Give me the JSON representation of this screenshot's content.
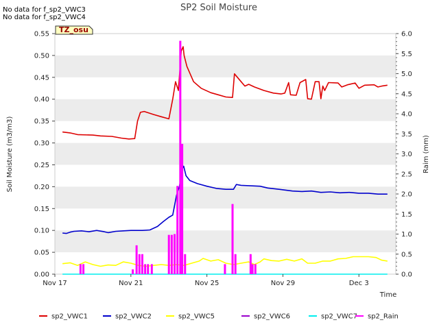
{
  "notes": [
    "No data for f_sp2_VWC3",
    "No data for f_sp2_VWC4"
  ],
  "badge": "TZ_osu",
  "chart_data": {
    "type": "line",
    "title": "SP2 Soil Moisture",
    "xlabel": "Time",
    "ylabel": "Soil Moisture (m3/m3)",
    "y2label": "Raim (mm)",
    "xlim": [
      0,
      17.5
    ],
    "ylim": [
      0,
      0.55
    ],
    "y2lim": [
      0,
      6.0
    ],
    "x_ticks": [
      0,
      4,
      8,
      12,
      16
    ],
    "x_tick_labels": [
      "Nov 17",
      "Nov 21",
      "Nov 25",
      "Nov 29",
      "Dec 3"
    ],
    "y_ticks": [
      0.0,
      0.05,
      0.1,
      0.15,
      0.2,
      0.25,
      0.3,
      0.35,
      0.4,
      0.45,
      0.5,
      0.55
    ],
    "y_tick_labels": [
      "0.00",
      "0.05",
      "0.10",
      "0.15",
      "0.20",
      "0.25",
      "0.30",
      "0.35",
      "0.40",
      "0.45",
      "0.50",
      "0.55"
    ],
    "y2_ticks": [
      0,
      0.5,
      1.0,
      1.5,
      2.0,
      2.5,
      3.0,
      3.5,
      4.0,
      4.5,
      5.0,
      5.5,
      6.0
    ],
    "y2_tick_labels": [
      "0.0",
      "0.5",
      "1.0",
      "1.5",
      "2.0",
      "2.5",
      "3.0",
      "3.5",
      "4.0",
      "4.5",
      "5.0",
      "5.5",
      "6.0"
    ],
    "grid": "horizontal bands",
    "legend_position": "bottom",
    "series": [
      {
        "name": "sp2_VWC1",
        "color": "#dd0000",
        "axis": "left",
        "points": [
          [
            0.4,
            0.325
          ],
          [
            0.8,
            0.323
          ],
          [
            1.2,
            0.319
          ],
          [
            2.0,
            0.318
          ],
          [
            2.4,
            0.316
          ],
          [
            3.0,
            0.315
          ],
          [
            3.5,
            0.311
          ],
          [
            3.9,
            0.309
          ],
          [
            4.2,
            0.31
          ],
          [
            4.35,
            0.35
          ],
          [
            4.5,
            0.37
          ],
          [
            4.7,
            0.372
          ],
          [
            5.2,
            0.365
          ],
          [
            5.6,
            0.36
          ],
          [
            6.0,
            0.355
          ],
          [
            6.2,
            0.4
          ],
          [
            6.35,
            0.44
          ],
          [
            6.5,
            0.42
          ],
          [
            6.65,
            0.51
          ],
          [
            6.75,
            0.52
          ],
          [
            6.8,
            0.5
          ],
          [
            6.95,
            0.475
          ],
          [
            7.3,
            0.44
          ],
          [
            7.7,
            0.425
          ],
          [
            8.2,
            0.415
          ],
          [
            8.6,
            0.41
          ],
          [
            9.0,
            0.405
          ],
          [
            9.35,
            0.404
          ],
          [
            9.45,
            0.458
          ],
          [
            9.8,
            0.44
          ],
          [
            10.0,
            0.43
          ],
          [
            10.2,
            0.434
          ],
          [
            10.5,
            0.428
          ],
          [
            11.0,
            0.42
          ],
          [
            11.5,
            0.414
          ],
          [
            11.9,
            0.412
          ],
          [
            12.1,
            0.414
          ],
          [
            12.3,
            0.438
          ],
          [
            12.4,
            0.41
          ],
          [
            12.7,
            0.409
          ],
          [
            12.9,
            0.438
          ],
          [
            13.2,
            0.445
          ],
          [
            13.3,
            0.401
          ],
          [
            13.5,
            0.4
          ],
          [
            13.7,
            0.44
          ],
          [
            13.9,
            0.44
          ],
          [
            14.0,
            0.401
          ],
          [
            14.1,
            0.43
          ],
          [
            14.2,
            0.42
          ],
          [
            14.4,
            0.438
          ],
          [
            14.9,
            0.437
          ],
          [
            15.1,
            0.428
          ],
          [
            15.4,
            0.433
          ],
          [
            15.8,
            0.437
          ],
          [
            16.0,
            0.425
          ],
          [
            16.3,
            0.432
          ],
          [
            16.8,
            0.433
          ],
          [
            17.0,
            0.428
          ],
          [
            17.2,
            0.43
          ],
          [
            17.5,
            0.432
          ]
        ]
      },
      {
        "name": "sp2_VWC2",
        "color": "#0000cc",
        "axis": "left",
        "points": [
          [
            0.4,
            0.094
          ],
          [
            0.6,
            0.093
          ],
          [
            0.8,
            0.096
          ],
          [
            1.0,
            0.098
          ],
          [
            1.4,
            0.099
          ],
          [
            1.8,
            0.097
          ],
          [
            2.2,
            0.1
          ],
          [
            2.6,
            0.097
          ],
          [
            2.8,
            0.095
          ],
          [
            3.2,
            0.098
          ],
          [
            3.6,
            0.099
          ],
          [
            4.0,
            0.1
          ],
          [
            4.6,
            0.1
          ],
          [
            5.0,
            0.101
          ],
          [
            5.4,
            0.109
          ],
          [
            5.7,
            0.12
          ],
          [
            6.0,
            0.13
          ],
          [
            6.2,
            0.135
          ],
          [
            6.4,
            0.18
          ],
          [
            6.55,
            0.2
          ],
          [
            6.7,
            0.24
          ],
          [
            6.78,
            0.247
          ],
          [
            6.9,
            0.225
          ],
          [
            7.1,
            0.214
          ],
          [
            7.5,
            0.207
          ],
          [
            8.0,
            0.201
          ],
          [
            8.5,
            0.196
          ],
          [
            9.0,
            0.194
          ],
          [
            9.4,
            0.194
          ],
          [
            9.55,
            0.205
          ],
          [
            9.8,
            0.203
          ],
          [
            10.3,
            0.202
          ],
          [
            10.8,
            0.201
          ],
          [
            11.2,
            0.197
          ],
          [
            11.8,
            0.194
          ],
          [
            12.5,
            0.19
          ],
          [
            13.0,
            0.189
          ],
          [
            13.5,
            0.19
          ],
          [
            14.0,
            0.187
          ],
          [
            14.5,
            0.188
          ],
          [
            15.0,
            0.186
          ],
          [
            15.5,
            0.187
          ],
          [
            16.0,
            0.185
          ],
          [
            16.5,
            0.185
          ],
          [
            17.0,
            0.183
          ],
          [
            17.5,
            0.183
          ]
        ]
      },
      {
        "name": "sp2_VWC5",
        "color": "#ffff00",
        "axis": "left",
        "points": [
          [
            0.4,
            0.024
          ],
          [
            0.8,
            0.026
          ],
          [
            1.2,
            0.02
          ],
          [
            1.6,
            0.028
          ],
          [
            2.0,
            0.022
          ],
          [
            2.4,
            0.018
          ],
          [
            2.8,
            0.021
          ],
          [
            3.2,
            0.02
          ],
          [
            3.6,
            0.028
          ],
          [
            4.0,
            0.025
          ],
          [
            4.4,
            0.02
          ],
          [
            4.8,
            0.018
          ],
          [
            5.2,
            0.02
          ],
          [
            5.6,
            0.022
          ],
          [
            6.0,
            0.02
          ],
          [
            6.4,
            0.022
          ],
          [
            6.8,
            0.02
          ],
          [
            7.2,
            0.025
          ],
          [
            7.6,
            0.03
          ],
          [
            7.8,
            0.036
          ],
          [
            8.2,
            0.03
          ],
          [
            8.6,
            0.033
          ],
          [
            9.0,
            0.025
          ],
          [
            9.4,
            0.022
          ],
          [
            9.8,
            0.025
          ],
          [
            10.2,
            0.028
          ],
          [
            10.5,
            0.022
          ],
          [
            10.8,
            0.028
          ],
          [
            11.0,
            0.035
          ],
          [
            11.4,
            0.031
          ],
          [
            11.8,
            0.03
          ],
          [
            12.2,
            0.034
          ],
          [
            12.6,
            0.03
          ],
          [
            13.0,
            0.035
          ],
          [
            13.3,
            0.025
          ],
          [
            13.7,
            0.025
          ],
          [
            14.1,
            0.03
          ],
          [
            14.5,
            0.03
          ],
          [
            14.9,
            0.035
          ],
          [
            15.3,
            0.036
          ],
          [
            15.7,
            0.04
          ],
          [
            16.1,
            0.04
          ],
          [
            16.5,
            0.04
          ],
          [
            16.9,
            0.038
          ],
          [
            17.2,
            0.032
          ],
          [
            17.5,
            0.03
          ]
        ]
      },
      {
        "name": "sp2_VWC6",
        "color": "#9900cc",
        "axis": "left",
        "points": []
      },
      {
        "name": "sp2_VWC7",
        "color": "#00eeee",
        "axis": "left",
        "points": [
          [
            0.4,
            0.0
          ],
          [
            17.5,
            0.0
          ]
        ]
      },
      {
        "name": "sp2_Rain",
        "color": "#ff00ff",
        "axis": "right",
        "bars": [
          [
            1.35,
            0.25
          ],
          [
            1.5,
            0.25
          ],
          [
            4.1,
            0.12
          ],
          [
            4.3,
            0.72
          ],
          [
            4.45,
            0.5
          ],
          [
            4.6,
            0.5
          ],
          [
            4.75,
            0.25
          ],
          [
            4.9,
            0.25
          ],
          [
            5.1,
            0.25
          ],
          [
            6.0,
            0.98
          ],
          [
            6.15,
            0.98
          ],
          [
            6.3,
            1.0
          ],
          [
            6.45,
            2.2
          ],
          [
            6.6,
            5.82
          ],
          [
            6.7,
            3.25
          ],
          [
            6.85,
            0.5
          ],
          [
            8.95,
            0.25
          ],
          [
            9.35,
            1.75
          ],
          [
            9.5,
            0.5
          ],
          [
            10.3,
            0.5
          ],
          [
            10.4,
            0.25
          ],
          [
            10.55,
            0.25
          ]
        ]
      }
    ]
  }
}
